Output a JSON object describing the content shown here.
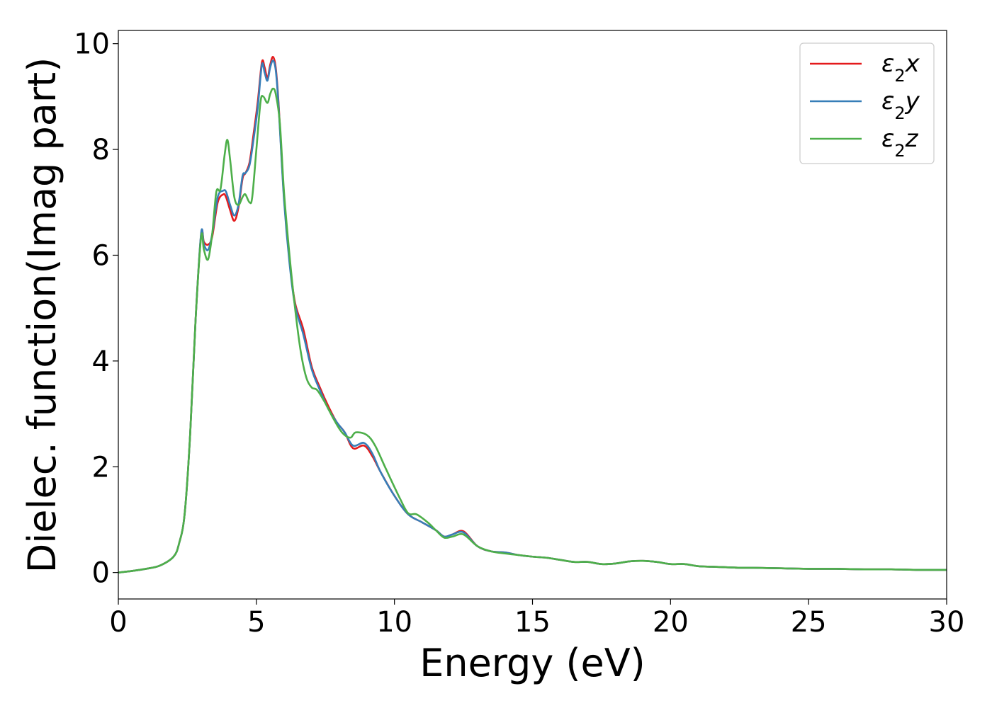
{
  "chart_data": {
    "type": "line",
    "title": "",
    "xlabel": "Energy (eV)",
    "ylabel": "Dielec. function(Imag part)",
    "xlim": [
      0,
      30
    ],
    "ylim": [
      -0.5,
      10.25
    ],
    "xticks": [
      0,
      5,
      10,
      15,
      20,
      25,
      30
    ],
    "yticks": [
      0,
      2,
      4,
      6,
      8,
      10
    ],
    "grid": false,
    "legend_position": "top-right",
    "series": [
      {
        "name": "ε2x",
        "legend_base": "ε",
        "legend_sub": "2",
        "legend_suffix": "x",
        "color": "#e41a1c",
        "points": [
          [
            0,
            0
          ],
          [
            0.5,
            0.03
          ],
          [
            1,
            0.07
          ],
          [
            1.5,
            0.13
          ],
          [
            2,
            0.3
          ],
          [
            2.2,
            0.55
          ],
          [
            2.4,
            1.1
          ],
          [
            2.6,
            2.6
          ],
          [
            2.8,
            4.8
          ],
          [
            3,
            6.4
          ],
          [
            3.1,
            6.25
          ],
          [
            3.25,
            6.2
          ],
          [
            3.4,
            6.35
          ],
          [
            3.6,
            7.0
          ],
          [
            3.8,
            7.15
          ],
          [
            3.9,
            7.1
          ],
          [
            4.05,
            6.85
          ],
          [
            4.2,
            6.65
          ],
          [
            4.35,
            6.9
          ],
          [
            4.5,
            7.45
          ],
          [
            4.6,
            7.55
          ],
          [
            4.75,
            7.75
          ],
          [
            4.9,
            8.3
          ],
          [
            5.05,
            8.9
          ],
          [
            5.2,
            9.65
          ],
          [
            5.3,
            9.55
          ],
          [
            5.4,
            9.35
          ],
          [
            5.5,
            9.6
          ],
          [
            5.6,
            9.75
          ],
          [
            5.7,
            9.55
          ],
          [
            5.8,
            8.9
          ],
          [
            6.0,
            7.1
          ],
          [
            6.2,
            5.9
          ],
          [
            6.4,
            5.1
          ],
          [
            6.7,
            4.6
          ],
          [
            7.0,
            3.9
          ],
          [
            7.3,
            3.5
          ],
          [
            7.6,
            3.15
          ],
          [
            7.9,
            2.85
          ],
          [
            8.2,
            2.65
          ],
          [
            8.5,
            2.35
          ],
          [
            8.9,
            2.4
          ],
          [
            9.2,
            2.2
          ],
          [
            9.5,
            1.9
          ],
          [
            10,
            1.45
          ],
          [
            10.5,
            1.1
          ],
          [
            11.0,
            0.95
          ],
          [
            11.5,
            0.8
          ],
          [
            11.8,
            0.68
          ],
          [
            12.1,
            0.72
          ],
          [
            12.5,
            0.78
          ],
          [
            13,
            0.5
          ],
          [
            13.5,
            0.4
          ],
          [
            14,
            0.38
          ],
          [
            14.5,
            0.33
          ],
          [
            15,
            0.3
          ],
          [
            15.5,
            0.28
          ],
          [
            16,
            0.24
          ],
          [
            16.5,
            0.2
          ],
          [
            17,
            0.2
          ],
          [
            17.5,
            0.16
          ],
          [
            18,
            0.17
          ],
          [
            18.5,
            0.21
          ],
          [
            19,
            0.22
          ],
          [
            19.5,
            0.2
          ],
          [
            20,
            0.16
          ],
          [
            20.5,
            0.16
          ],
          [
            21,
            0.12
          ],
          [
            21.5,
            0.11
          ],
          [
            22,
            0.1
          ],
          [
            22.5,
            0.09
          ],
          [
            23,
            0.09
          ],
          [
            24,
            0.08
          ],
          [
            25,
            0.07
          ],
          [
            26,
            0.07
          ],
          [
            27,
            0.06
          ],
          [
            28,
            0.06
          ],
          [
            29,
            0.05
          ],
          [
            30,
            0.05
          ]
        ]
      },
      {
        "name": "ε2y",
        "legend_base": "ε",
        "legend_sub": "2",
        "legend_suffix": "y",
        "color": "#377eb8",
        "points": [
          [
            0,
            0
          ],
          [
            0.5,
            0.03
          ],
          [
            1,
            0.07
          ],
          [
            1.5,
            0.13
          ],
          [
            2,
            0.3
          ],
          [
            2.2,
            0.55
          ],
          [
            2.4,
            1.1
          ],
          [
            2.6,
            2.6
          ],
          [
            2.8,
            4.8
          ],
          [
            3,
            6.42
          ],
          [
            3.1,
            6.2
          ],
          [
            3.25,
            6.1
          ],
          [
            3.4,
            6.4
          ],
          [
            3.6,
            7.1
          ],
          [
            3.8,
            7.22
          ],
          [
            3.9,
            7.2
          ],
          [
            4.05,
            6.95
          ],
          [
            4.2,
            6.75
          ],
          [
            4.35,
            6.95
          ],
          [
            4.5,
            7.5
          ],
          [
            4.6,
            7.55
          ],
          [
            4.75,
            7.7
          ],
          [
            4.9,
            8.2
          ],
          [
            5.05,
            8.8
          ],
          [
            5.2,
            9.6
          ],
          [
            5.3,
            9.45
          ],
          [
            5.4,
            9.3
          ],
          [
            5.5,
            9.55
          ],
          [
            5.6,
            9.68
          ],
          [
            5.7,
            9.5
          ],
          [
            5.8,
            8.85
          ],
          [
            6.0,
            7.05
          ],
          [
            6.2,
            5.85
          ],
          [
            6.4,
            5.05
          ],
          [
            6.7,
            4.5
          ],
          [
            7.0,
            3.85
          ],
          [
            7.3,
            3.45
          ],
          [
            7.6,
            3.1
          ],
          [
            7.9,
            2.85
          ],
          [
            8.2,
            2.65
          ],
          [
            8.5,
            2.4
          ],
          [
            8.9,
            2.45
          ],
          [
            9.2,
            2.25
          ],
          [
            9.5,
            1.9
          ],
          [
            10,
            1.45
          ],
          [
            10.5,
            1.1
          ],
          [
            11.0,
            0.95
          ],
          [
            11.5,
            0.8
          ],
          [
            11.8,
            0.68
          ],
          [
            12.1,
            0.72
          ],
          [
            12.5,
            0.76
          ],
          [
            13,
            0.5
          ],
          [
            13.5,
            0.4
          ],
          [
            14,
            0.38
          ],
          [
            14.5,
            0.33
          ],
          [
            15,
            0.3
          ],
          [
            15.5,
            0.28
          ],
          [
            16,
            0.24
          ],
          [
            16.5,
            0.2
          ],
          [
            17,
            0.2
          ],
          [
            17.5,
            0.16
          ],
          [
            18,
            0.17
          ],
          [
            18.5,
            0.21
          ],
          [
            19,
            0.22
          ],
          [
            19.5,
            0.2
          ],
          [
            20,
            0.16
          ],
          [
            20.5,
            0.16
          ],
          [
            21,
            0.12
          ],
          [
            21.5,
            0.11
          ],
          [
            22,
            0.1
          ],
          [
            22.5,
            0.09
          ],
          [
            23,
            0.09
          ],
          [
            24,
            0.08
          ],
          [
            25,
            0.07
          ],
          [
            26,
            0.07
          ],
          [
            27,
            0.06
          ],
          [
            28,
            0.06
          ],
          [
            29,
            0.05
          ],
          [
            30,
            0.05
          ]
        ]
      },
      {
        "name": "ε2z",
        "legend_base": "ε",
        "legend_sub": "2",
        "legend_suffix": "z",
        "color": "#4daf4a",
        "points": [
          [
            0,
            0
          ],
          [
            0.5,
            0.03
          ],
          [
            1,
            0.07
          ],
          [
            1.5,
            0.13
          ],
          [
            2,
            0.3
          ],
          [
            2.2,
            0.55
          ],
          [
            2.4,
            1.1
          ],
          [
            2.6,
            2.6
          ],
          [
            2.8,
            4.8
          ],
          [
            3,
            6.35
          ],
          [
            3.1,
            6.1
          ],
          [
            3.25,
            5.92
          ],
          [
            3.4,
            6.4
          ],
          [
            3.55,
            7.2
          ],
          [
            3.7,
            7.25
          ],
          [
            3.85,
            7.9
          ],
          [
            3.95,
            8.18
          ],
          [
            4.05,
            7.8
          ],
          [
            4.2,
            7.1
          ],
          [
            4.35,
            6.95
          ],
          [
            4.5,
            7.1
          ],
          [
            4.6,
            7.15
          ],
          [
            4.75,
            7.0
          ],
          [
            4.85,
            7.1
          ],
          [
            5.0,
            8.0
          ],
          [
            5.15,
            8.9
          ],
          [
            5.25,
            9.0
          ],
          [
            5.4,
            8.88
          ],
          [
            5.5,
            9.05
          ],
          [
            5.6,
            9.15
          ],
          [
            5.7,
            9.05
          ],
          [
            5.85,
            8.5
          ],
          [
            6.0,
            7.2
          ],
          [
            6.2,
            6.0
          ],
          [
            6.4,
            5.0
          ],
          [
            6.6,
            4.2
          ],
          [
            6.8,
            3.7
          ],
          [
            7.0,
            3.5
          ],
          [
            7.2,
            3.45
          ],
          [
            7.5,
            3.2
          ],
          [
            7.8,
            2.9
          ],
          [
            8.1,
            2.65
          ],
          [
            8.4,
            2.55
          ],
          [
            8.6,
            2.65
          ],
          [
            9.0,
            2.6
          ],
          [
            9.3,
            2.4
          ],
          [
            9.7,
            1.95
          ],
          [
            10.2,
            1.4
          ],
          [
            10.5,
            1.12
          ],
          [
            10.8,
            1.1
          ],
          [
            11.2,
            0.95
          ],
          [
            11.5,
            0.8
          ],
          [
            11.8,
            0.66
          ],
          [
            12.1,
            0.68
          ],
          [
            12.5,
            0.72
          ],
          [
            13,
            0.5
          ],
          [
            13.5,
            0.4
          ],
          [
            14,
            0.36
          ],
          [
            14.5,
            0.33
          ],
          [
            15,
            0.3
          ],
          [
            15.5,
            0.28
          ],
          [
            16,
            0.24
          ],
          [
            16.5,
            0.2
          ],
          [
            17,
            0.2
          ],
          [
            17.5,
            0.16
          ],
          [
            18,
            0.17
          ],
          [
            18.5,
            0.21
          ],
          [
            19,
            0.22
          ],
          [
            19.5,
            0.2
          ],
          [
            20,
            0.16
          ],
          [
            20.5,
            0.16
          ],
          [
            21,
            0.12
          ],
          [
            21.5,
            0.11
          ],
          [
            22,
            0.1
          ],
          [
            22.5,
            0.09
          ],
          [
            23,
            0.09
          ],
          [
            24,
            0.08
          ],
          [
            25,
            0.07
          ],
          [
            26,
            0.07
          ],
          [
            27,
            0.06
          ],
          [
            28,
            0.06
          ],
          [
            29,
            0.05
          ],
          [
            30,
            0.05
          ]
        ]
      }
    ]
  }
}
